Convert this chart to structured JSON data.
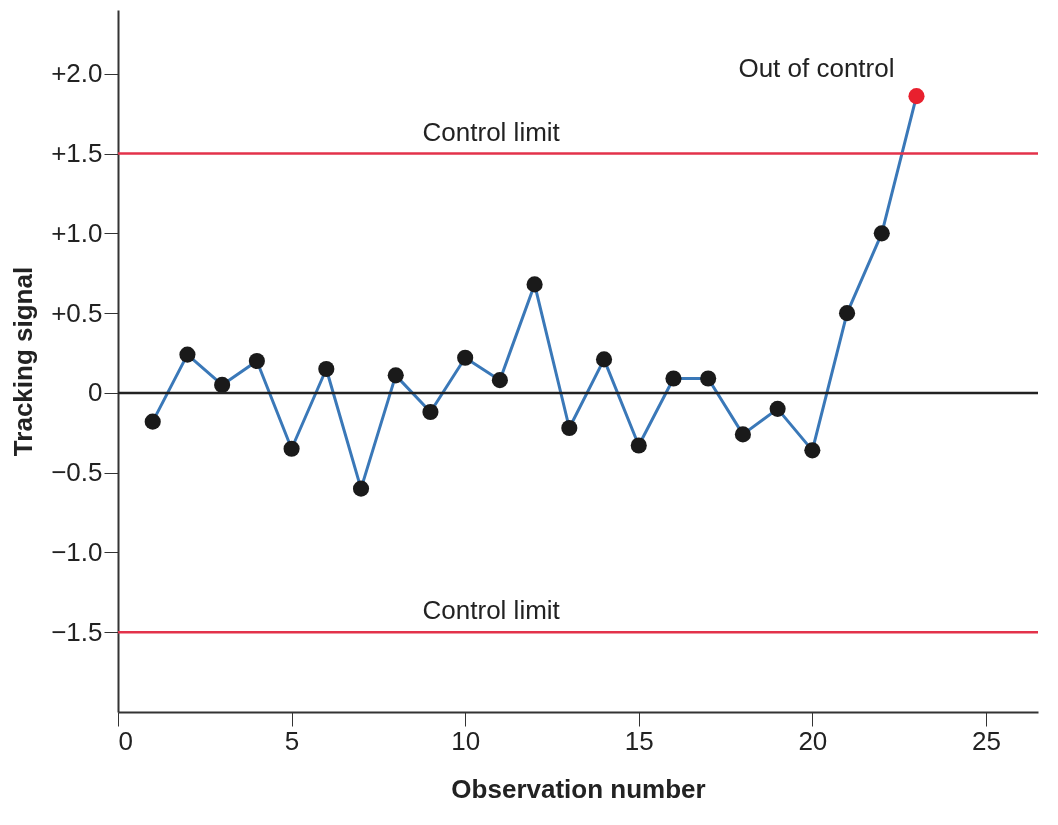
{
  "chart_data": {
    "type": "line",
    "xlabel": "Observation number",
    "ylabel": "Tracking signal",
    "x": [
      1,
      2,
      3,
      4,
      5,
      6,
      7,
      8,
      9,
      10,
      11,
      12,
      13,
      14,
      15,
      16,
      17,
      18,
      19,
      20,
      21,
      22,
      23
    ],
    "series": [
      {
        "color": "#3a78b8",
        "colors": [
          "#1a1a1a",
          "#1a1a1a",
          "#1a1a1a",
          "#1a1a1a",
          "#1a1a1a",
          "#1a1a1a",
          "#1a1a1a",
          "#1a1a1a",
          "#1a1a1a",
          "#1a1a1a",
          "#1a1a1a",
          "#1a1a1a",
          "#1a1a1a",
          "#1a1a1a",
          "#1a1a1a",
          "#1a1a1a",
          "#1a1a1a",
          "#1a1a1a",
          "#1a1a1a",
          "#1a1a1a",
          "#1a1a1a",
          "#1a1a1a",
          "#e8202e"
        ],
        "values": [
          -0.18,
          0.24,
          0.05,
          0.2,
          -0.35,
          0.15,
          -0.6,
          0.11,
          -0.12,
          0.22,
          0.08,
          0.68,
          -0.22,
          0.21,
          -0.33,
          0.09,
          0.09,
          -0.26,
          -0.1,
          -0.36,
          0.5,
          1.0,
          1.86
        ]
      }
    ],
    "xlim": [
      0,
      26.5
    ],
    "xticks": [
      0,
      5,
      10,
      15,
      20,
      25
    ],
    "ylim": [
      -2.0,
      2.4
    ],
    "yticks": [
      {
        "value": 2.0,
        "label": "+2.0"
      },
      {
        "value": 1.5,
        "label": "+1.5"
      },
      {
        "value": 1.0,
        "label": "+1.0"
      },
      {
        "value": 0.5,
        "label": "+0.5"
      },
      0,
      {
        "value": -0.5,
        "label": "−0.5"
      },
      {
        "value": -1.0,
        "label": "−1.0"
      },
      {
        "value": -1.5,
        "label": "−1.5"
      }
    ],
    "ref_lines": [
      {
        "axis": "y",
        "value": 1.5,
        "label": "Control limit",
        "color": "#e3324a"
      },
      {
        "axis": "y",
        "value": -1.5,
        "label": "Control limit",
        "color": "#e3324a"
      },
      {
        "axis": "y",
        "value": 0,
        "color": "#222222"
      }
    ],
    "annotations": [
      {
        "text": "Out of control",
        "x": 23,
        "y": 1.86
      }
    ],
    "marker": "circle",
    "line_style": "solid",
    "grid": false
  }
}
